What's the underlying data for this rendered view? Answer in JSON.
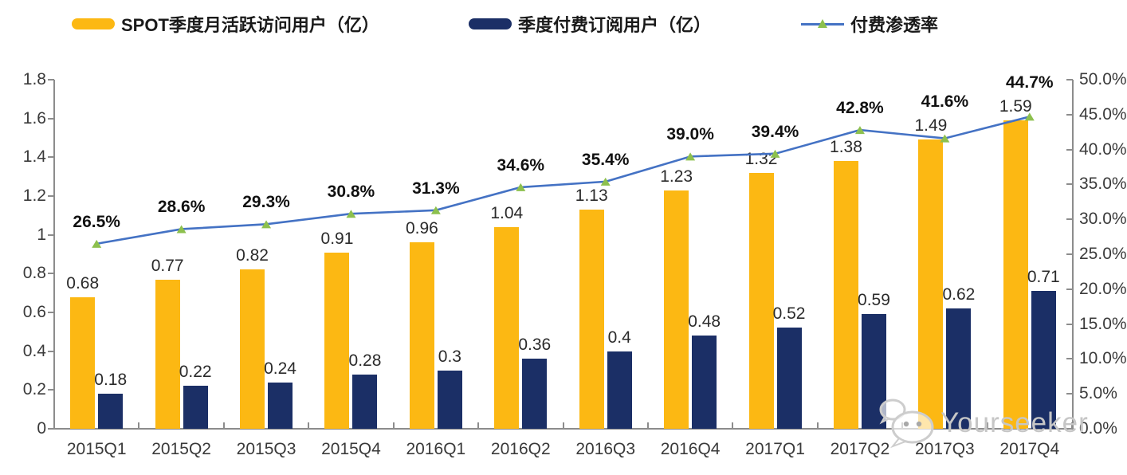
{
  "legend": {
    "items": [
      {
        "label": "SPOT季度月活跃访问用户（亿）"
      },
      {
        "label": "季度付费订阅用户（亿）"
      },
      {
        "label": "付费渗透率"
      }
    ]
  },
  "watermark": {
    "text": "Yourseeker",
    "icon": "wechat-icon"
  },
  "colors": {
    "mau_bar": "#FCB813",
    "sub_bar": "#1B2F66",
    "line": "#4472C4",
    "marker": "#8DC04E",
    "axis": "#8c8c8c",
    "watermark": "#c6c6c6"
  },
  "chart_data": {
    "type": "bar",
    "title": "",
    "categories": [
      "2015Q1",
      "2015Q2",
      "2015Q3",
      "2015Q4",
      "2016Q1",
      "2016Q2",
      "2016Q3",
      "2016Q4",
      "2017Q1",
      "2017Q2",
      "2017Q3",
      "2017Q4"
    ],
    "series": [
      {
        "name": "SPOT季度月活跃访问用户（亿）",
        "type": "bar",
        "axis": "left",
        "color": "#FCB813",
        "values": [
          0.68,
          0.77,
          0.82,
          0.91,
          0.96,
          1.04,
          1.13,
          1.23,
          1.32,
          1.38,
          1.49,
          1.59
        ],
        "labels": [
          "0.68",
          "0.77",
          "0.82",
          "0.91",
          "0.96",
          "1.04",
          "1.13",
          "1.23",
          "1.32",
          "1.38",
          "1.49",
          "1.59"
        ]
      },
      {
        "name": "季度付费订阅用户（亿）",
        "type": "bar",
        "axis": "left",
        "color": "#1B2F66",
        "values": [
          0.18,
          0.22,
          0.24,
          0.28,
          0.3,
          0.36,
          0.4,
          0.48,
          0.52,
          0.59,
          0.62,
          0.71
        ],
        "labels": [
          "0.18",
          "0.22",
          "0.24",
          "0.28",
          "0.3",
          "0.36",
          "0.4",
          "0.48",
          "0.52",
          "0.59",
          "0.62",
          "0.71"
        ]
      },
      {
        "name": "付费渗透率",
        "type": "line",
        "axis": "right",
        "color": "#4472C4",
        "marker": "triangle",
        "marker_color": "#8DC04E",
        "values": [
          26.5,
          28.6,
          29.3,
          30.8,
          31.3,
          34.6,
          35.4,
          39.0,
          39.4,
          42.8,
          41.6,
          44.7
        ],
        "labels": [
          "26.5%",
          "28.6%",
          "29.3%",
          "30.8%",
          "31.3%",
          "34.6%",
          "35.4%",
          "39.0%",
          "39.4%",
          "42.8%",
          "41.6%",
          "44.7%"
        ]
      }
    ],
    "left_axis": {
      "min": 0,
      "max": 1.8,
      "step": 0.2,
      "ticks": [
        "0",
        "0.2",
        "0.4",
        "0.6",
        "0.8",
        "1",
        "1.2",
        "1.4",
        "1.6",
        "1.8"
      ]
    },
    "right_axis": {
      "min": 0,
      "max": 50,
      "step": 5,
      "ticks": [
        "0.0%",
        "5.0%",
        "10.0%",
        "15.0%",
        "20.0%",
        "25.0%",
        "30.0%",
        "35.0%",
        "40.0%",
        "45.0%",
        "50.0%"
      ]
    },
    "grid": false,
    "legend_position": "top"
  }
}
